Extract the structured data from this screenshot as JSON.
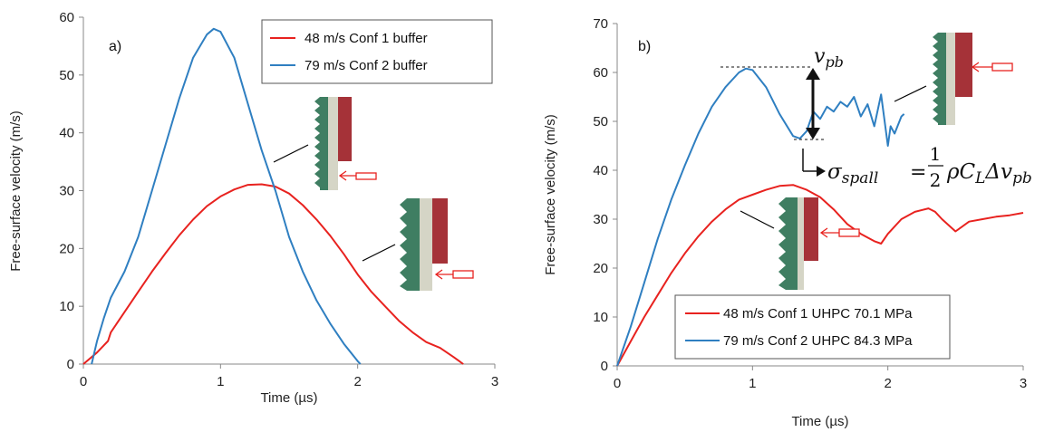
{
  "colors": {
    "series1": "#e8221f",
    "series2": "#2f7fc1",
    "axis": "#888888"
  },
  "chart_data": [
    {
      "type": "line",
      "panel_label": "a)",
      "xlabel": "Time (µs)",
      "ylabel": "Free-surface velocity (m/s)",
      "xlim": [
        0,
        3
      ],
      "ylim": [
        0,
        60
      ],
      "xticks": [
        "0",
        "1",
        "2",
        "3"
      ],
      "yticks": [
        "0",
        "10",
        "20",
        "30",
        "40",
        "50",
        "60"
      ],
      "grid": false,
      "legend_position": "top-right",
      "series": [
        {
          "name": "48 m/s Conf 1 buffer",
          "color": "#e8221f",
          "x": [
            0,
            0.1,
            0.18,
            0.2,
            0.3,
            0.4,
            0.5,
            0.6,
            0.7,
            0.8,
            0.9,
            1.0,
            1.1,
            1.2,
            1.3,
            1.4,
            1.5,
            1.6,
            1.7,
            1.8,
            1.9,
            2.0,
            2.1,
            2.2,
            2.3,
            2.4,
            2.5,
            2.6,
            2.7,
            2.77
          ],
          "y": [
            0,
            2,
            4,
            5.5,
            9,
            12.5,
            16,
            19.2,
            22.3,
            25,
            27.3,
            29,
            30.2,
            31,
            31.1,
            30.7,
            29.5,
            27.5,
            25,
            22.2,
            19,
            15.5,
            12.5,
            10,
            7.5,
            5.5,
            3.8,
            2.8,
            1.2,
            0
          ]
        },
        {
          "name": "79 m/s Conf 2 buffer",
          "color": "#2f7fc1",
          "x": [
            0.06,
            0.1,
            0.15,
            0.2,
            0.3,
            0.4,
            0.5,
            0.6,
            0.7,
            0.8,
            0.9,
            0.95,
            1.0,
            1.1,
            1.2,
            1.3,
            1.4,
            1.5,
            1.6,
            1.7,
            1.8,
            1.9,
            2.0,
            2.02
          ],
          "y": [
            0,
            4,
            8,
            11.5,
            16,
            22,
            30,
            38,
            46,
            53,
            57,
            58,
            57.5,
            53,
            45,
            37,
            30,
            22,
            16,
            11,
            7,
            3.5,
            0.5,
            0
          ]
        }
      ]
    },
    {
      "type": "line",
      "panel_label": "b)",
      "xlabel": "Time (µs)",
      "ylabel": "Free-surface velocity (m/s)",
      "xlim": [
        0,
        3
      ],
      "ylim": [
        0,
        70
      ],
      "xticks": [
        "0",
        "1",
        "2",
        "3"
      ],
      "yticks": [
        "0",
        "10",
        "20",
        "30",
        "40",
        "50",
        "60",
        "70"
      ],
      "grid": false,
      "legend_position": "bottom-center",
      "annotation_vpb": "v",
      "annotation_vpb_sub": "pb",
      "annotation_formula": {
        "lhs": "σ",
        "lhs_sub": "spall",
        "eq": "=",
        "frac_num": "1",
        "frac_den": "2",
        "rhs": "ρC",
        "rhs_sub": "L",
        "delta": "Δv",
        "delta_sub": "pb"
      },
      "series": [
        {
          "name": "48 m/s Conf 1 UHPC 70.1 MPa",
          "color": "#e8221f",
          "x": [
            0,
            0.1,
            0.2,
            0.3,
            0.4,
            0.5,
            0.6,
            0.7,
            0.8,
            0.9,
            1.0,
            1.1,
            1.2,
            1.3,
            1.4,
            1.5,
            1.6,
            1.7,
            1.8,
            1.9,
            1.95,
            2.0,
            2.1,
            2.2,
            2.3,
            2.35,
            2.4,
            2.5,
            2.6,
            2.7,
            2.8,
            2.9,
            3.0
          ],
          "y": [
            0,
            5,
            10,
            14.5,
            19,
            23,
            26.5,
            29.5,
            32,
            34,
            35,
            36,
            36.8,
            37,
            36,
            34.5,
            32,
            29,
            27,
            25.5,
            25,
            27,
            30,
            31.5,
            32.2,
            31.5,
            30,
            27.5,
            29.5,
            30,
            30.5,
            30.8,
            31.3
          ]
        },
        {
          "name": "79 m/s Conf 2 UHPC 84.3 MPa",
          "color": "#2f7fc1",
          "x": [
            0,
            0.1,
            0.2,
            0.3,
            0.4,
            0.5,
            0.6,
            0.7,
            0.8,
            0.9,
            0.95,
            1.0,
            1.1,
            1.2,
            1.3,
            1.35,
            1.4,
            1.45,
            1.5,
            1.55,
            1.6,
            1.65,
            1.7,
            1.75,
            1.8,
            1.85,
            1.9,
            1.95,
            2.0,
            2.02,
            2.05,
            2.1,
            2.12
          ],
          "y": [
            0,
            8,
            17,
            26,
            34,
            41,
            47.5,
            53,
            57,
            60,
            60.8,
            60.5,
            57,
            51.5,
            47,
            46.5,
            48,
            52,
            50.5,
            53,
            52,
            54,
            53,
            55,
            51,
            53.5,
            49,
            55.5,
            45,
            49,
            47.5,
            51,
            51.5
          ]
        }
      ]
    }
  ]
}
